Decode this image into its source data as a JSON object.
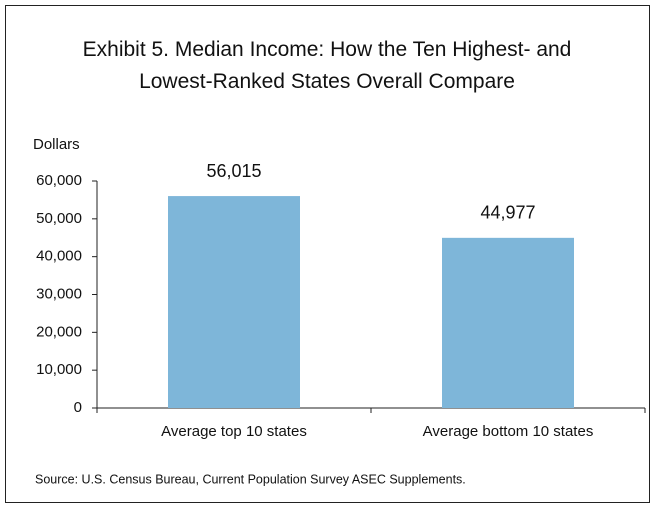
{
  "chart_data": {
    "type": "bar",
    "title": "Exhibit 5. Median Income: How the Ten Highest- and Lowest-Ranked States Overall Compare",
    "y_label": "Dollars",
    "categories": [
      "Average top 10 states",
      "Average bottom 10 states"
    ],
    "values": [
      56015,
      44977
    ],
    "value_labels": [
      "56,015",
      "44,977"
    ],
    "color": "#7eb6d9",
    "ylim": [
      0,
      60000
    ],
    "yticks": [
      0,
      {
        "value": 10000,
        "label": "10,000"
      },
      {
        "value": 20000,
        "label": "20,000"
      },
      {
        "value": 30000,
        "label": "30,000"
      },
      {
        "value": 40000,
        "label": "40,000"
      },
      {
        "value": 50000,
        "label": "50,000"
      },
      {
        "value": 60000,
        "label": "60,000"
      }
    ],
    "grid": false,
    "source": "Source: U.S. Census Bureau, Current Population Survey ASEC Supplements."
  }
}
